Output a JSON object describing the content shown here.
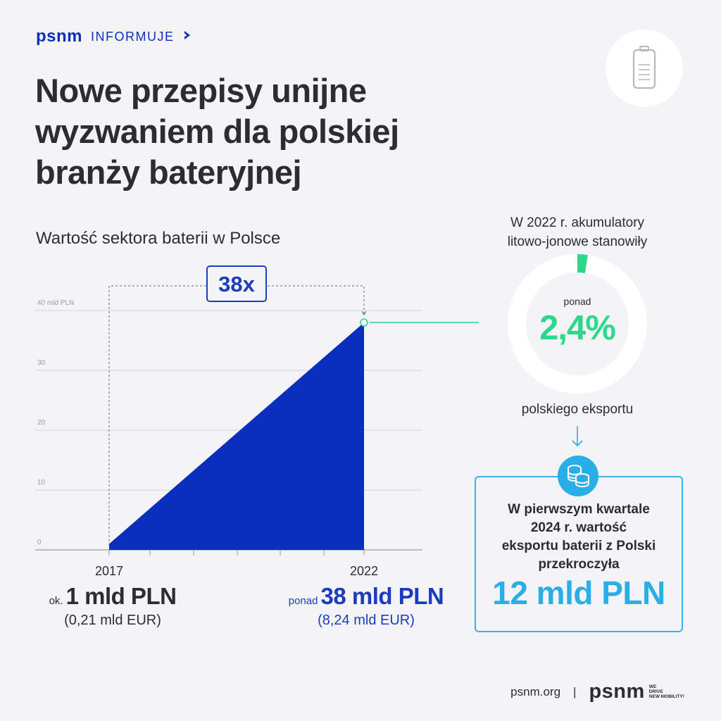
{
  "header": {
    "brand": "psnm",
    "tag": "INFORMUJE",
    "title_lines": [
      "Nowe przepisy unijne",
      "wyzwaniem dla polskiej",
      "branży bateryjnej"
    ]
  },
  "icons": {
    "header_arrow": "chevron-right-icon",
    "badge": "battery-icon",
    "coins": "coins-icon",
    "down_arrow": "arrow-down-icon"
  },
  "colors": {
    "accent_blue": "#0a2fbf",
    "chart_fill": "#0a2fbf",
    "green": "#2ed88a",
    "light_blue": "#2aaee8",
    "text": "#2d2d2f",
    "background": "#f4f4f6"
  },
  "chart_data": {
    "type": "area",
    "title": "Wartość sektora baterii w Polsce",
    "x": [
      2017,
      2022
    ],
    "x_ticks": [
      "2017",
      "2022"
    ],
    "values": [
      1,
      38
    ],
    "unit": "mld PLN",
    "y_ticks": [
      "0",
      "10",
      "20",
      "30",
      "40 mld PLN"
    ],
    "ylim": [
      0,
      40
    ],
    "grid": true,
    "multiplier_label": "38x",
    "start_label": {
      "prefix": "ok.",
      "value": "1 mld PLN",
      "sub": "(0,21 mld EUR)"
    },
    "end_label": {
      "prefix": "ponad",
      "value": "38 mld PLN",
      "sub": "(8,24 mld EUR)"
    }
  },
  "donut": {
    "caption_lines": [
      "W 2022 r. akumulatory",
      "litowo-jonowe stanowiły"
    ],
    "prefix": "ponad",
    "value": "2,4%",
    "fraction": 0.024,
    "after": "polskiego eksportu"
  },
  "info_box": {
    "lines": [
      "W pierwszym kwartale",
      "2024 r. wartość",
      "eksportu baterii z Polski",
      "przekroczyła"
    ],
    "value": "12 mld PLN"
  },
  "footer": {
    "site": "psnm.org",
    "separator": "|",
    "logo": "psnm",
    "slogan_lines": [
      "WE",
      "DRIVE",
      "NEW MOBILITY!"
    ]
  }
}
